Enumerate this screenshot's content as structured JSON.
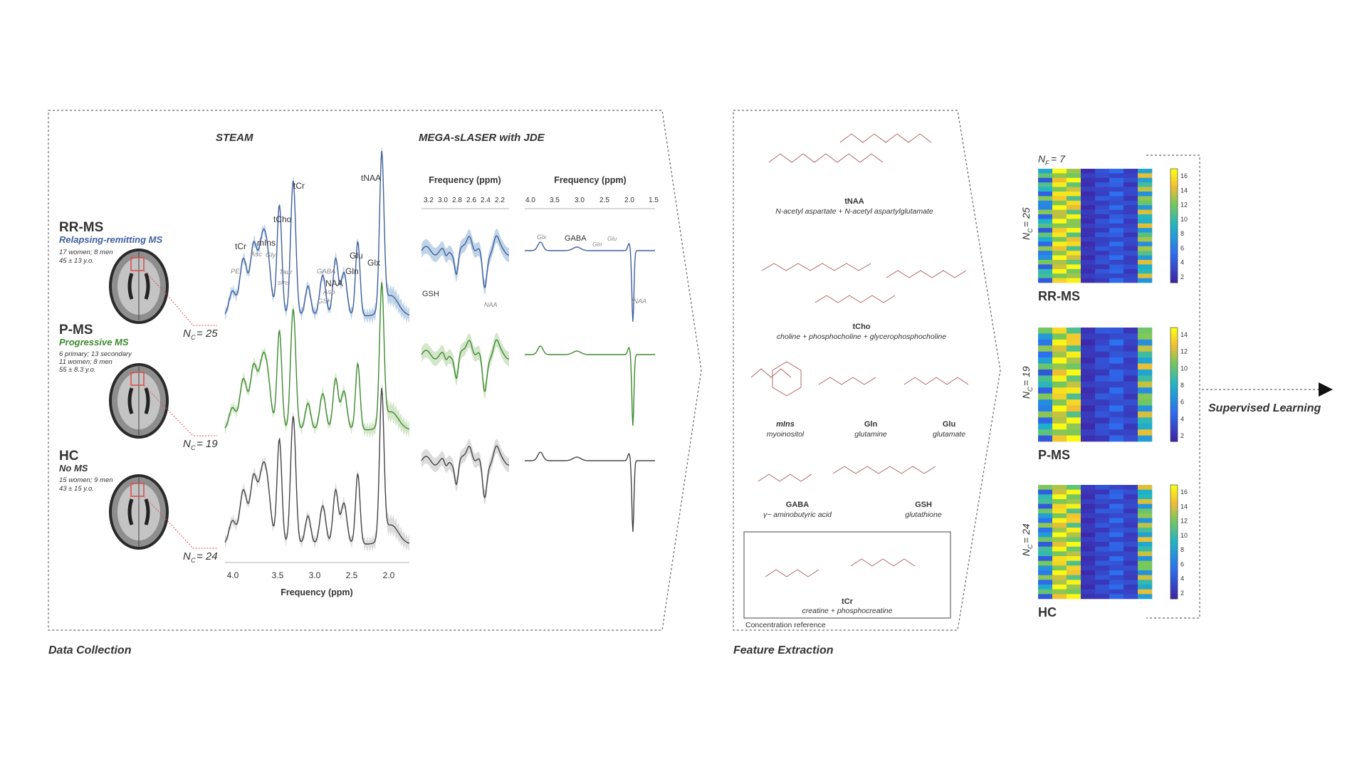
{
  "sections": {
    "data_collection": "Data Collection",
    "feature_extraction": "Feature Extraction",
    "supervised_learning": "Supervised Learning"
  },
  "methods": {
    "steam": "STEAM",
    "mega": "MEGA-sLASER with JDE"
  },
  "groups": [
    {
      "code": "RR-MS",
      "name": "Relapsing-remitting MS",
      "line1": "17 women; 8 men",
      "line2": "45 ± 13 y.o.",
      "line3": "",
      "nc": "25",
      "color": "#3e5f9e",
      "fill": "#b9cfe6"
    },
    {
      "code": "P-MS",
      "name": "Progressive MS",
      "line1": "6 primary; 13 secondary",
      "line2": "11 women; 8 men",
      "line3": "55 ± 8.3 y.o.",
      "nc": "19",
      "color": "#3c8a2e",
      "fill": "#cfe3c4"
    },
    {
      "code": "HC",
      "name": "No MS",
      "line1": "15 women; 9 men",
      "line2": "43 ± 15 y.o.",
      "line3": "",
      "nc": "24",
      "color": "#333333",
      "fill": "#d8d8d8"
    }
  ],
  "steam_peaks": {
    "tCr_top": "tCr",
    "tCho": "tCho",
    "tNAA": "tNAA",
    "tCr": "tCr",
    "mIns": "mIns",
    "Glu": "Glu",
    "Glx": "Glx",
    "Gln": "Gln",
    "NAA": "NAA",
    "PE": "PE",
    "Asc": "Asc",
    "Gly": "Gly",
    "Taur": "Taur",
    "sIns": "sIns",
    "GABA": "GABA",
    "Asp": "Asp",
    "GSH": "GSH"
  },
  "steam_axis": {
    "label": "Frequency (ppm)",
    "ticks": [
      "4.0",
      "3.5",
      "3.0",
      "2.5",
      "2.0"
    ]
  },
  "mega_left_axis": {
    "label": "Frequency (ppm)",
    "ticks": [
      "3.2",
      "3.0",
      "2.8",
      "2.6",
      "2.4",
      "2.2"
    ]
  },
  "mega_right_axis": {
    "label": "Frequency (ppm)",
    "ticks": [
      "4.0",
      "3.5",
      "3.0",
      "2.5",
      "2.0",
      "1.5"
    ]
  },
  "mega_labels": {
    "GSH": "GSH",
    "NAA": "NAA",
    "Glx": "Glx",
    "GABA": "GABA",
    "Gln": "Gln",
    "Glu": "Glu",
    "tNAA": "tNAA"
  },
  "metabolites": [
    {
      "abbr": "tNAA",
      "desc": "N-acetyl aspartate + N-acetyl aspartylglutamate"
    },
    {
      "abbr": "tCho",
      "desc": "choline + phosphocholine + glycerophosphocholine"
    },
    {
      "abbr": "mIns",
      "desc": "myoinositol"
    },
    {
      "abbr": "Gln",
      "desc": "glutamine"
    },
    {
      "abbr": "Glu",
      "desc": "glutamate"
    },
    {
      "abbr": "GABA",
      "desc": "γ− aminobutyric acid"
    },
    {
      "abbr": "GSH",
      "desc": "glutathione"
    },
    {
      "abbr": "tCr",
      "desc": "creatine + phosphocreatine"
    }
  ],
  "concentration_reference": "Concentration reference",
  "nf_label": "= 7",
  "colorbars": [
    {
      "ticks": [
        "16",
        "14",
        "12",
        "10",
        "8",
        "6",
        "4",
        "2"
      ]
    },
    {
      "ticks": [
        "14",
        "12",
        "10",
        "8",
        "6",
        "4",
        "2"
      ]
    },
    {
      "ticks": [
        "16",
        "14",
        "12",
        "10",
        "8",
        "6",
        "4",
        "2"
      ]
    }
  ],
  "colors": {
    "dashed": "#555555",
    "chem": "#a85a5a",
    "accent_blue": "#3e5f9e",
    "accent_green": "#3c8a2e",
    "red_line": "#d9534f"
  }
}
